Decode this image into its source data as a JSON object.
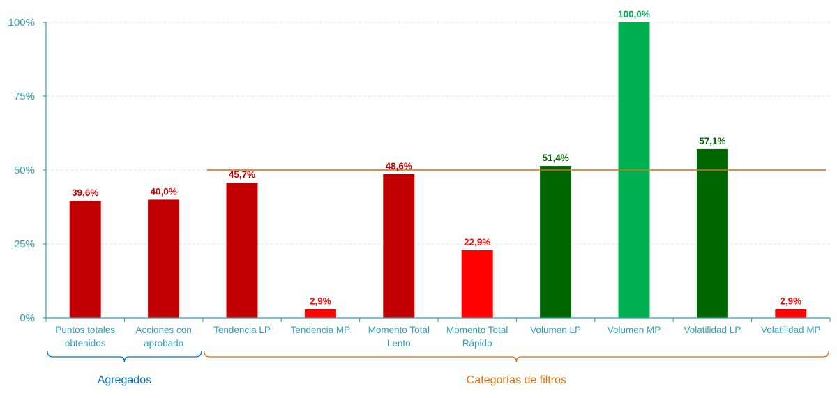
{
  "chart_data": {
    "type": "bar",
    "categories": [
      [
        "Puntos totales",
        "obtenidos"
      ],
      [
        "Acciones con",
        "aprobado"
      ],
      [
        "Tendencia LP"
      ],
      [
        "Tendencia MP"
      ],
      [
        "Momento Total",
        "Lento"
      ],
      [
        "Momento Total",
        "Rápido"
      ],
      [
        "Volumen LP"
      ],
      [
        "Volumen MP"
      ],
      [
        "Volatilidad LP"
      ],
      [
        "Volatilidad MP"
      ]
    ],
    "values": [
      39.6,
      40.0,
      45.7,
      2.9,
      48.6,
      22.9,
      51.4,
      100.0,
      57.1,
      2.9
    ],
    "value_labels": [
      "39,6%",
      "40,0%",
      "45,7%",
      "2,9%",
      "48,6%",
      "22,9%",
      "51,4%",
      "100,0%",
      "57,1%",
      "2,9%"
    ],
    "bar_colors": [
      "#c00000",
      "#c00000",
      "#c00000",
      "#ff0000",
      "#c00000",
      "#ff0000",
      "#006400",
      "#00b050",
      "#006400",
      "#ff0000"
    ],
    "label_colors": [
      "#c00000",
      "#c00000",
      "#c00000",
      "#ff0000",
      "#c00000",
      "#ff0000",
      "#006400",
      "#00b050",
      "#006400",
      "#ff0000"
    ],
    "ylim": [
      0,
      100
    ],
    "yticks": [
      0,
      25,
      50,
      75,
      100
    ],
    "ytick_labels": [
      "0%",
      "25%",
      "50%",
      "75%",
      "100%"
    ],
    "reference_line": {
      "value": 50,
      "from_category": 2,
      "color": "#e36c09"
    },
    "groups": [
      {
        "label": "Agregados",
        "from": 0,
        "to": 1,
        "color": "#0070c0"
      },
      {
        "label": "Categorías de filtros",
        "from": 2,
        "to": 9,
        "color": "#e36c09"
      }
    ],
    "axis_color": "#2e9fb7",
    "grid": true
  }
}
